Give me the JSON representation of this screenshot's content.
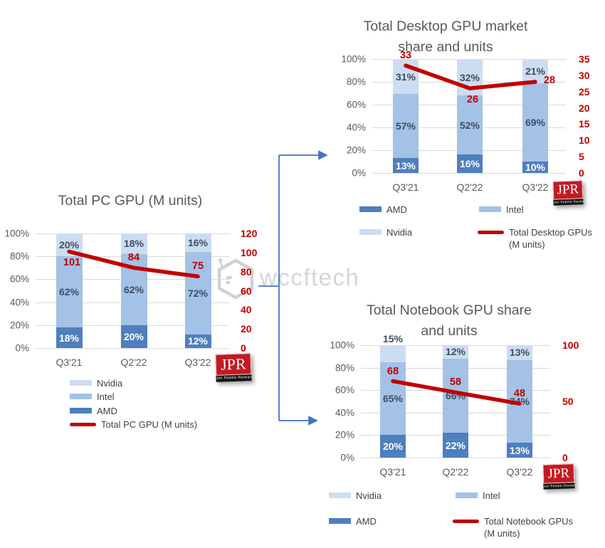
{
  "watermark": {
    "text": "wccftech"
  },
  "jpr": {
    "text": "JPR",
    "subtext": "Jon Peddie Research"
  },
  "colors": {
    "amd": "#4e7fbe",
    "intel": "#a3c2e6",
    "nvidia": "#cdddf1",
    "line": "#c00000",
    "grid": "#d9d9d9",
    "axis_text": "#595959",
    "arrow": "#4472c4"
  },
  "chart_data": [
    {
      "type": "bar",
      "subtype": "stacked-bar-with-line",
      "title": "Total PC GPU (M units)",
      "categories": [
        "Q3'21",
        "Q2'22",
        "Q3'22"
      ],
      "series": [
        {
          "name": "AMD",
          "color": "#4e7fbe",
          "label_color": "#ffffff",
          "unit": "%",
          "values": [
            18,
            20,
            12
          ]
        },
        {
          "name": "Intel",
          "color": "#a3c2e6",
          "label_color": "#3f4d63",
          "unit": "%",
          "values": [
            62,
            62,
            72
          ]
        },
        {
          "name": "Nvidia",
          "color": "#cdddf1",
          "label_color": "#3f4d63",
          "unit": "%",
          "values": [
            20,
            18,
            16
          ]
        }
      ],
      "line": {
        "name": "Total PC GPU (M units)",
        "color": "#c00000",
        "values": [
          101,
          84,
          75
        ],
        "label_pos": [
          "below",
          "above",
          "above"
        ]
      },
      "left_axis": {
        "ticks": [
          "0%",
          "20%",
          "40%",
          "60%",
          "80%",
          "100%"
        ]
      },
      "right_axis": {
        "ticks": [
          0,
          20,
          40,
          60,
          80,
          100,
          120
        ],
        "max": 120
      },
      "legend": {
        "layout": "vertical",
        "items": [
          {
            "label": "Nvidia",
            "type": "swatch"
          },
          {
            "label": "Intel",
            "type": "swatch"
          },
          {
            "label": "AMD",
            "type": "swatch"
          },
          {
            "label": "Total PC GPU (M units)",
            "type": "line"
          }
        ]
      }
    },
    {
      "type": "bar",
      "subtype": "stacked-bar-with-line",
      "title": "Total Desktop GPU market\nshare and units",
      "categories": [
        "Q3'21",
        "Q2'22",
        "Q3'22"
      ],
      "series": [
        {
          "name": "AMD",
          "color": "#4e7fbe",
          "label_color": "#ffffff",
          "unit": "%",
          "values": [
            13,
            16,
            10
          ]
        },
        {
          "name": "Intel",
          "color": "#a3c2e6",
          "label_color": "#3f4d63",
          "unit": "%",
          "values": [
            57,
            52,
            69
          ]
        },
        {
          "name": "Nvidia",
          "color": "#cdddf1",
          "label_color": "#3f4d63",
          "unit": "%",
          "values": [
            31,
            32,
            21
          ]
        }
      ],
      "line": {
        "name": "Total Desktop GPUs\n(M units)",
        "color": "#c00000",
        "values": [
          33,
          26,
          28
        ],
        "label_pos": [
          "above",
          "below",
          "right"
        ]
      },
      "left_axis": {
        "ticks": [
          "0%",
          "20%",
          "40%",
          "60%",
          "80%",
          "100%"
        ]
      },
      "right_axis": {
        "ticks": [
          0,
          5,
          10,
          15,
          20,
          25,
          30,
          35
        ],
        "max": 35
      },
      "legend": {
        "layout": "two-column",
        "items": [
          {
            "label": "AMD",
            "type": "swatch"
          },
          {
            "label": "Intel",
            "type": "swatch"
          },
          {
            "label": "Nvidia",
            "type": "swatch"
          },
          {
            "label": "Total Desktop GPUs\n(M units)",
            "type": "line"
          }
        ]
      }
    },
    {
      "type": "bar",
      "subtype": "stacked-bar-with-line",
      "title": "Total Notebook GPU share\nand units",
      "categories": [
        "Q3'21",
        "Q2'22",
        "Q3'22"
      ],
      "series": [
        {
          "name": "AMD",
          "color": "#4e7fbe",
          "label_color": "#ffffff",
          "unit": "%",
          "values": [
            20,
            22,
            13
          ]
        },
        {
          "name": "Intel",
          "color": "#a3c2e6",
          "label_color": "#3f4d63",
          "unit": "%",
          "values": [
            65,
            66,
            74
          ]
        },
        {
          "name": "Nvidia",
          "color": "#cdddf1",
          "label_color": "#3f4d63",
          "unit": "%",
          "values": [
            15,
            12,
            13
          ],
          "outside_categories": [
            0
          ]
        }
      ],
      "line": {
        "name": "Total Notebook GPUs\n(M units)",
        "color": "#c00000",
        "values": [
          68,
          58,
          48
        ],
        "label_pos": [
          "above",
          "above",
          "above"
        ]
      },
      "left_axis": {
        "ticks": [
          "0%",
          "20%",
          "40%",
          "60%",
          "80%",
          "100%"
        ]
      },
      "right_axis": {
        "ticks": [
          0,
          50,
          100
        ],
        "max": 100
      },
      "legend": {
        "layout": "two-column",
        "items": [
          {
            "label": "Nvidia",
            "type": "swatch"
          },
          {
            "label": "Intel",
            "type": "swatch"
          },
          {
            "label": "AMD",
            "type": "swatch"
          },
          {
            "label": "Total Notebook GPUs\n(M units)",
            "type": "line"
          }
        ]
      }
    }
  ]
}
